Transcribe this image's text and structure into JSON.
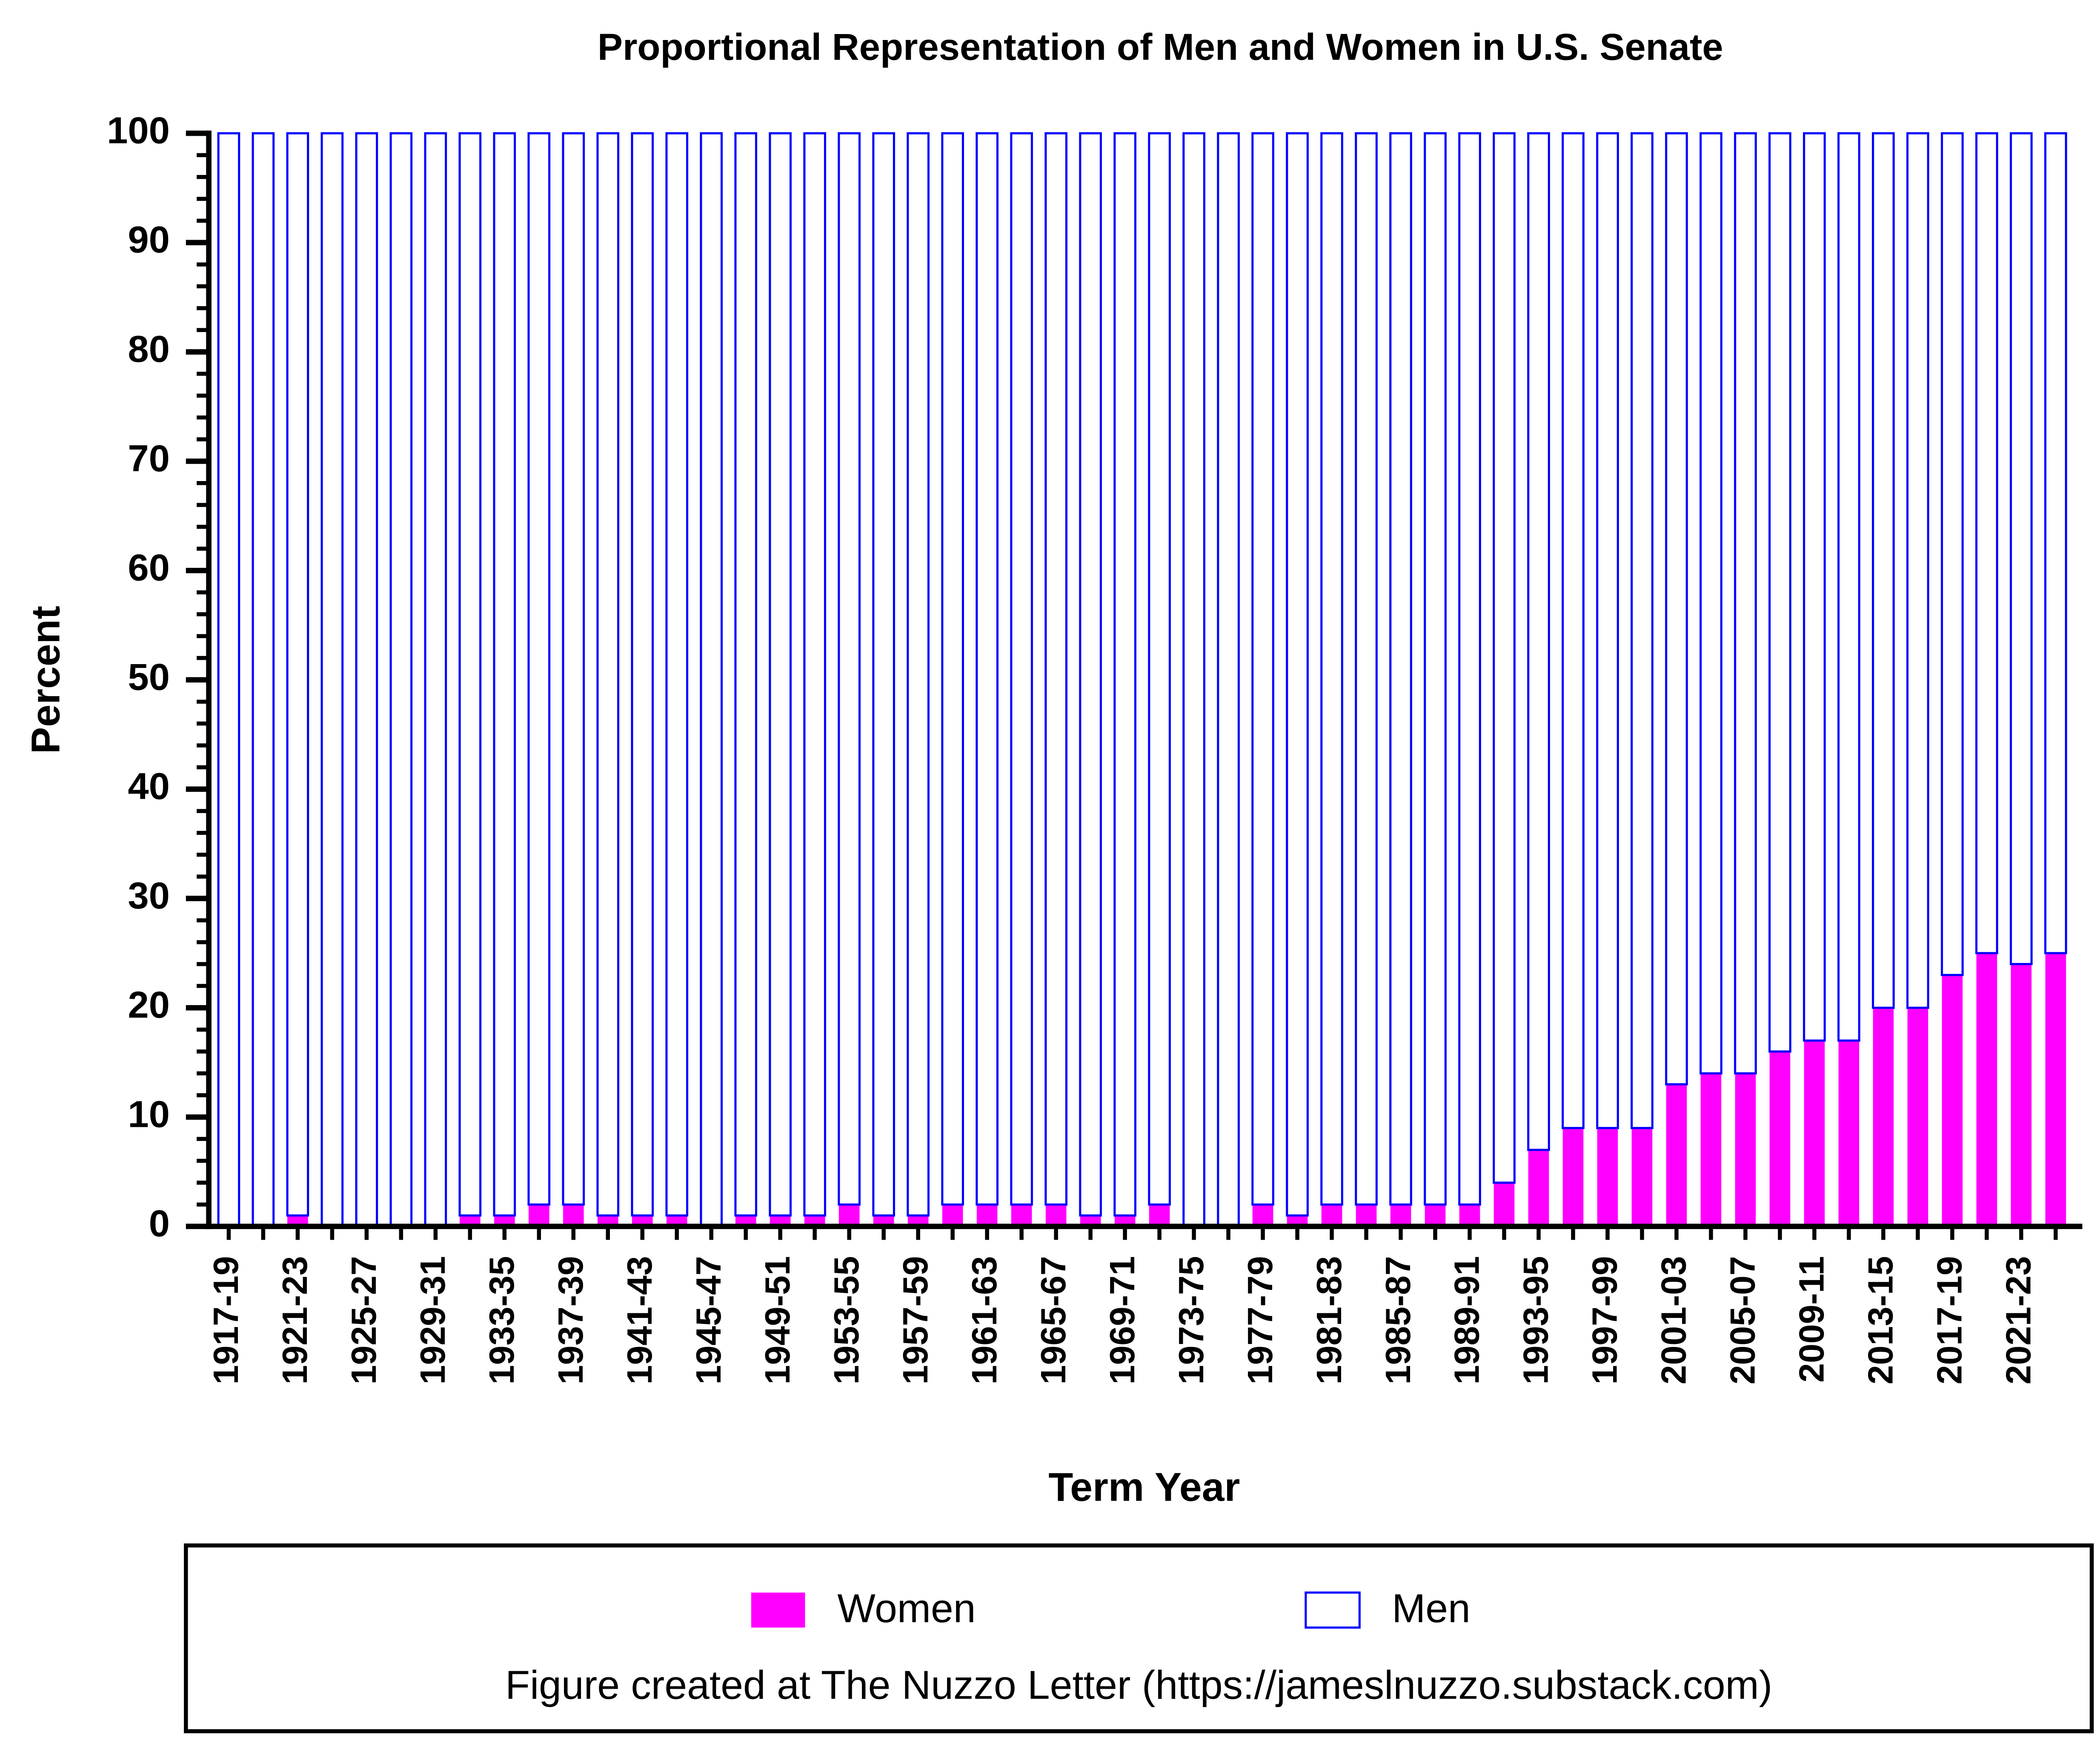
{
  "chart_data": {
    "type": "stacked_bar",
    "title": "Proportional Representation of Men and Women in U.S. Senate",
    "xlabel": "Term Year",
    "ylabel": "Percent",
    "note": "Figure created at The Nuzzo Letter (https://jameslnuzzo.substack.com)",
    "categories": [
      "1917-19",
      null,
      "1921-23",
      null,
      "1925-27",
      null,
      "1929-31",
      null,
      "1933-35",
      null,
      "1937-39",
      null,
      "1941-43",
      null,
      "1945-47",
      null,
      "1949-51",
      null,
      "1953-55",
      null,
      "1957-59",
      null,
      "1961-63",
      null,
      "1965-67",
      null,
      "1969-71",
      null,
      "1973-75",
      null,
      "1977-79",
      null,
      "1981-83",
      null,
      "1985-87",
      null,
      "1989-91",
      null,
      "1993-95",
      null,
      "1997-99",
      null,
      "2001-03",
      null,
      "2005-07",
      null,
      "2009-11",
      null,
      "2013-15",
      null,
      "2017-19",
      null,
      "2021-23",
      null
    ],
    "series": [
      {
        "name": "Women",
        "color": "#ff00ff",
        "fill": true,
        "values": [
          0,
          0,
          1,
          0,
          0,
          0,
          0,
          1,
          1,
          2,
          2,
          1,
          1,
          1,
          0,
          1,
          1,
          1,
          2,
          1,
          1,
          2,
          2,
          2,
          2,
          1,
          1,
          2,
          0,
          0,
          2,
          1,
          2,
          2,
          2,
          2,
          2,
          4,
          7,
          9,
          9,
          9,
          13,
          14,
          14,
          16,
          17,
          17,
          20,
          20,
          23,
          25,
          24,
          25
        ]
      },
      {
        "name": "Men",
        "color": "#0000ff",
        "fill": false,
        "values": [
          100,
          100,
          99,
          100,
          100,
          100,
          100,
          99,
          99,
          98,
          98,
          99,
          99,
          99,
          100,
          99,
          99,
          99,
          98,
          99,
          99,
          98,
          98,
          98,
          98,
          99,
          99,
          98,
          100,
          100,
          98,
          99,
          98,
          98,
          98,
          98,
          98,
          96,
          93,
          91,
          91,
          91,
          87,
          86,
          86,
          84,
          83,
          83,
          80,
          80,
          77,
          75,
          76,
          75
        ]
      }
    ],
    "ylim": [
      0,
      100
    ],
    "yticks": [
      0,
      10,
      20,
      30,
      40,
      50,
      60,
      70,
      80,
      90,
      100
    ],
    "grid": false
  }
}
